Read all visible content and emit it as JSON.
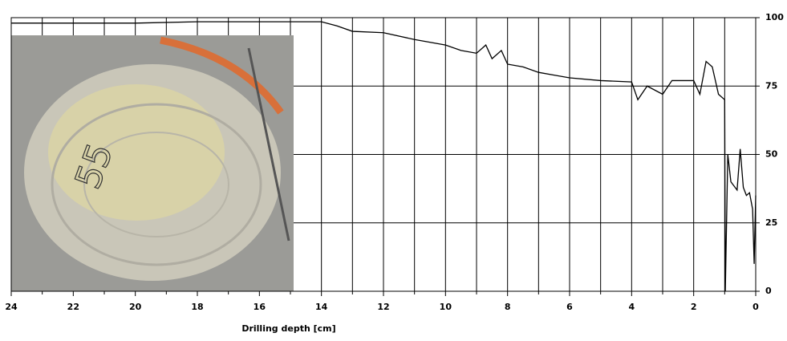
{
  "chart_data": {
    "type": "line",
    "x_label": "Drilling depth [cm]",
    "inset_label": "55",
    "x": [
      24,
      22,
      20,
      18,
      16,
      15,
      14,
      13.5,
      13,
      12,
      11,
      10,
      9.5,
      9,
      8.7,
      8.5,
      8.2,
      8,
      7.5,
      7,
      6.5,
      6,
      5,
      4,
      3.8,
      3.5,
      3,
      2.7,
      2,
      1.8,
      1.6,
      1.4,
      1.2,
      1.0,
      0.98,
      0.9,
      0.8,
      0.6,
      0.5,
      0.4,
      0.3,
      0.2,
      0.1,
      0.05,
      0
    ],
    "series": [
      {
        "color": "#000000",
        "values": [
          98,
          98,
          98,
          98.5,
          98.5,
          98.5,
          98.5,
          97,
          95,
          94.5,
          92,
          90,
          88,
          87,
          90,
          85,
          88,
          83,
          82,
          80,
          79,
          78,
          77,
          76.5,
          70,
          75,
          72,
          77,
          77,
          72,
          84,
          82,
          72,
          70,
          0,
          50,
          40,
          37,
          52,
          38,
          35,
          36,
          30,
          10,
          35
        ]
      }
    ],
    "xlim": [
      24,
      0
    ],
    "xticks": [
      24,
      22,
      20,
      18,
      16,
      14,
      12,
      10,
      8,
      6,
      4,
      2,
      0
    ],
    "xminorticks": [
      23,
      21,
      19,
      17,
      15,
      13,
      11,
      9,
      7,
      5,
      3,
      1
    ],
    "ylim": [
      0,
      100
    ],
    "yticks": [
      0,
      25,
      50,
      75,
      100
    ],
    "grid": true
  }
}
